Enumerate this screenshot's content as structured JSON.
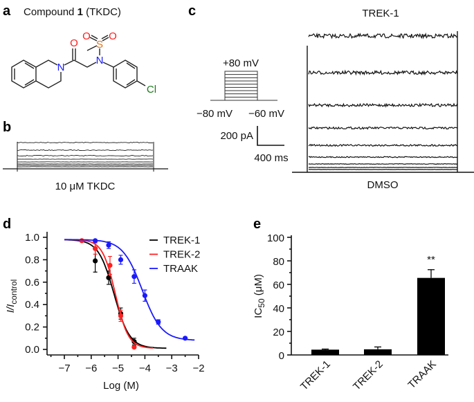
{
  "panels": {
    "a": {
      "label": "a",
      "title_prefix": "Compound ",
      "title_bold": "1",
      "title_suffix": " (TKDC)",
      "atoms": {
        "n1": "N",
        "o_carbonyl": "O",
        "n2": "N",
        "s": "S",
        "o1": "O",
        "o2": "O",
        "cl": "Cl"
      },
      "colors": {
        "N": "#1a1aff",
        "O": "#ff1a1a",
        "S": "#e0701a",
        "Cl": "#1a7a1a"
      }
    },
    "b": {
      "label": "b",
      "caption": "10 μM TKDC"
    },
    "c": {
      "label": "c",
      "title": "TREK-1",
      "caption": "DMSO",
      "protocol": {
        "step_top": "+80 mV",
        "hold_left": "−80 mV",
        "hold_right": "−60 mV"
      },
      "scale": {
        "current": "200 pA",
        "time": "400 ms"
      }
    },
    "d": {
      "label": "d"
    },
    "e": {
      "label": "e",
      "significance": "**"
    }
  },
  "chart_data": [
    {
      "type": "scatter",
      "panel": "d",
      "xlabel": "Log (M)",
      "ylabel_main": "I/I",
      "ylabel_sub": "control",
      "xlim": [
        -7.5,
        -2
      ],
      "ylim": [
        0,
        1.0
      ],
      "xticks": [
        "−7",
        "−6",
        "−5",
        "−4",
        "−3",
        "−2"
      ],
      "xtick_values": [
        -7,
        -6,
        -5,
        -4,
        -3,
        -2
      ],
      "yticks": [
        "0.0",
        "0.2",
        "0.4",
        "0.6",
        "0.8",
        "1.0"
      ],
      "ytick_values": [
        0,
        0.2,
        0.4,
        0.6,
        0.8,
        1.0
      ],
      "legend": "top-right",
      "series": [
        {
          "name": "TREK-1",
          "color": "#000000",
          "x": [
            -5.85,
            -5.35,
            -4.9,
            -4.4
          ],
          "y": [
            0.79,
            0.64,
            0.32,
            0.07
          ],
          "err": [
            0.1,
            0.06,
            0.05,
            0.03
          ],
          "fit": {
            "top": 0.98,
            "bottom": 0.01,
            "logIC50": -5.15,
            "hill": 1.5,
            "range": [
              -7,
              -3.2
            ]
          }
        },
        {
          "name": "TREK-2",
          "color": "#ff2020",
          "x": [
            -6.35,
            -5.85,
            -5.3,
            -4.9,
            -4.4
          ],
          "y": [
            0.97,
            0.9,
            0.75,
            0.3,
            0.02
          ],
          "err": [
            0.01,
            0.05,
            0.08,
            0.05,
            0.01
          ],
          "fit": {
            "top": 0.98,
            "bottom": 0.01,
            "logIC50": -5.1,
            "hill": 1.8,
            "range": [
              -7,
              -3.7
            ]
          }
        },
        {
          "name": "TRAAK",
          "color": "#1a1aff",
          "x": [
            -5.85,
            -5.35,
            -4.9,
            -4.4,
            -4.0,
            -3.5,
            -2.5
          ],
          "y": [
            0.97,
            0.93,
            0.8,
            0.65,
            0.48,
            0.245,
            0.1
          ],
          "err": [
            0.01,
            0.03,
            0.04,
            0.06,
            0.05,
            0.02,
            0.01
          ],
          "fit": {
            "top": 0.98,
            "bottom": 0.08,
            "logIC50": -4.1,
            "hill": 1.2,
            "range": [
              -7,
              -2.15
            ]
          }
        }
      ]
    },
    {
      "type": "bar",
      "panel": "e",
      "ylabel_main": "IC",
      "ylabel_sub": "50",
      "ylabel_unit": " (μM)",
      "categories": [
        "TREK-1",
        "TREK-2",
        "TRAAK"
      ],
      "values": [
        4.5,
        4.8,
        65.5
      ],
      "errors": [
        0.5,
        2.0,
        7.0
      ],
      "ylim": [
        0,
        100
      ],
      "yticks": [
        "0",
        "20",
        "40",
        "60",
        "80",
        "100"
      ],
      "ytick_values": [
        0,
        20,
        40,
        60,
        80,
        100
      ],
      "color": "#000000"
    }
  ]
}
